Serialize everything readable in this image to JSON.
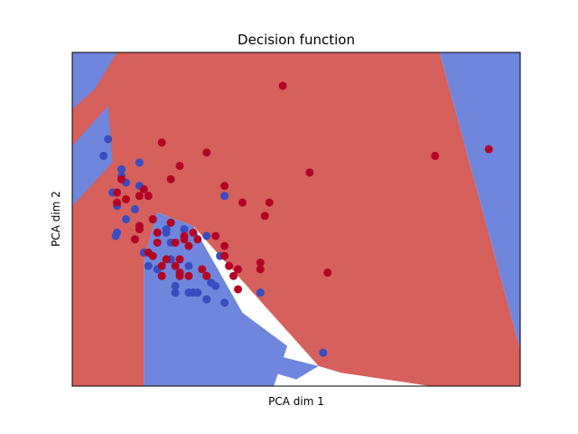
{
  "chart_data": {
    "type": "scatter",
    "title": "Decision function",
    "xlabel": "PCA dim 1",
    "ylabel": "PCA dim 2",
    "xlim": [
      0,
      10
    ],
    "ylim": [
      0,
      10
    ],
    "grid": false,
    "ticks_visible": false,
    "colors": {
      "class_0_point": "#3b4cc0",
      "class_1_point": "#b40426",
      "class_0_region": "#6f86dc",
      "class_1_region": "#d5605c",
      "axes_frame": "#000000"
    },
    "background_regions": [
      {
        "class": 1,
        "polygon": [
          [
            0,
            10
          ],
          [
            8.2,
            10
          ],
          [
            10,
            1.1
          ],
          [
            10,
            0
          ],
          [
            8,
            0
          ],
          [
            6,
            0.4
          ],
          [
            5.5,
            0.6
          ],
          [
            4.5,
            2.1
          ],
          [
            2.7,
            4.8
          ],
          [
            1.9,
            5.2
          ],
          [
            1.6,
            3.8
          ],
          [
            1.6,
            0
          ],
          [
            0,
            0
          ]
        ]
      },
      {
        "class": 0,
        "polygon": [
          [
            8.2,
            10
          ],
          [
            10,
            10
          ],
          [
            10,
            1.1
          ]
        ]
      },
      {
        "class": 0,
        "polygon": [
          [
            1.6,
            0
          ],
          [
            4.5,
            0
          ],
          [
            4.8,
            1.2
          ],
          [
            3.8,
            2.2
          ],
          [
            2.7,
            4.8
          ],
          [
            1.9,
            5.2
          ],
          [
            1.6,
            3.8
          ]
        ]
      },
      {
        "class": 0,
        "polygon": [
          [
            0,
            10
          ],
          [
            1.0,
            10
          ],
          [
            0.5,
            8.9
          ],
          [
            0,
            8.3
          ]
        ]
      },
      {
        "class": 0,
        "polygon": [
          [
            0,
            7.2
          ],
          [
            0.8,
            8.4
          ],
          [
            0.9,
            6.7
          ],
          [
            0,
            5.4
          ]
        ]
      },
      {
        "class": 0,
        "polygon": [
          [
            4.6,
            0.9
          ],
          [
            5.5,
            0.6
          ],
          [
            5.0,
            0.2
          ],
          [
            4.5,
            0.4
          ]
        ]
      }
    ],
    "series": [
      {
        "class": 0,
        "x": [
          0.8,
          0.7,
          1.1,
          1.2,
          0.9,
          1.0,
          1.4,
          1.9,
          1.2,
          1.6,
          1.0,
          0.97,
          1.7,
          1.9,
          2.0,
          2.3,
          2.7,
          2.2,
          2.6,
          1.8,
          2.1,
          2.5,
          3.0,
          3.3,
          3.2,
          3.1,
          2.3,
          2.6,
          2.8,
          3.0,
          3.0,
          3.4,
          4.2,
          3.4,
          5.6,
          1.5,
          2.2,
          2.1,
          1.5,
          1.1
        ],
        "y": [
          7.4,
          6.9,
          6.3,
          6.1,
          5.8,
          5.4,
          5.3,
          4.6,
          5.0,
          4.0,
          4.6,
          4.5,
          3.6,
          3.5,
          3.3,
          3.0,
          2.8,
          3.8,
          3.6,
          5.0,
          4.6,
          4.7,
          4.5,
          3.9,
          3.0,
          3.1,
          2.8,
          2.8,
          2.8,
          2.6,
          2.6,
          2.5,
          2.8,
          5.7,
          1.0,
          6.7,
          4.3,
          4.7,
          6.0,
          6.5
        ]
      },
      {
        "class": 1,
        "x": [
          4.7,
          2.0,
          3.0,
          2.4,
          2.2,
          1.0,
          1.1,
          1.6,
          1.5,
          1.2,
          1.7,
          3.4,
          3.8,
          4.3,
          4.4,
          5.3,
          5.7,
          9.3,
          8.1,
          1.5,
          1.8,
          1.9,
          1.9,
          2.2,
          2.5,
          2.8,
          2.3,
          2.5,
          2.6,
          3.2,
          2.4,
          2.9,
          3.4,
          3.7,
          3.0,
          3.5,
          4.2,
          4.2,
          3.7,
          2.1,
          1.4,
          2.4,
          3.4,
          1.5,
          1.0,
          2.3,
          3.6,
          2.4,
          1.7,
          2.0,
          1.8,
          2.0,
          2.6,
          3.0,
          2.7
        ],
        "y": [
          9.0,
          7.3,
          7.0,
          6.6,
          6.2,
          5.8,
          6.2,
          5.9,
          5.7,
          5.6,
          5.7,
          6.0,
          5.5,
          5.1,
          5.5,
          6.4,
          3.4,
          7.1,
          6.9,
          4.8,
          5.0,
          4.6,
          4.3,
          4.9,
          4.4,
          4.4,
          4.3,
          4.5,
          4.2,
          4.5,
          3.3,
          3.5,
          3.9,
          3.5,
          3.3,
          3.6,
          3.5,
          3.7,
          2.9,
          3.8,
          4.4,
          3.8,
          4.2,
          4.7,
          5.5,
          3.6,
          3.3,
          3.4,
          4.0,
          3.6,
          3.9,
          3.3,
          3.3,
          3.3,
          4.6
        ]
      }
    ]
  }
}
